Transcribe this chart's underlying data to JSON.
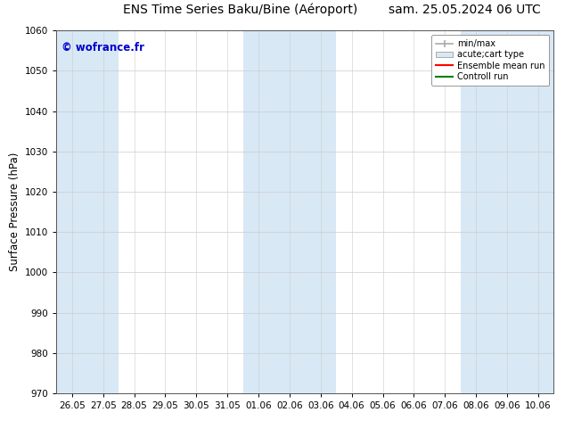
{
  "title_left": "ENS Time Series Baku/Bine (Aéroport)",
  "title_right": "sam. 25.05.2024 06 UTC",
  "ylabel": "Surface Pressure (hPa)",
  "ylim": [
    970,
    1060
  ],
  "yticks": [
    970,
    980,
    990,
    1000,
    1010,
    1020,
    1030,
    1040,
    1050,
    1060
  ],
  "xtick_labels": [
    "26.05",
    "27.05",
    "28.05",
    "29.05",
    "30.05",
    "31.05",
    "01.06",
    "02.06",
    "03.06",
    "04.06",
    "05.06",
    "06.06",
    "07.06",
    "08.06",
    "09.06",
    "10.06"
  ],
  "watermark": "© wofrance.fr",
  "watermark_color": "#0000cc",
  "bg_color": "#ffffff",
  "plot_bg_color": "#ffffff",
  "band_color": "#d8e8f5",
  "band_cols": [
    0,
    1,
    6,
    7,
    8,
    13,
    14,
    15
  ],
  "legend_labels": [
    "min/max",
    "acute;cart type",
    "Ensemble mean run",
    "Controll run"
  ],
  "legend_colors": [
    "#aaaaaa",
    "#d8e8f5",
    "#ff0000",
    "#008000"
  ],
  "title_fontsize": 10,
  "tick_fontsize": 7.5,
  "ylabel_fontsize": 8.5
}
